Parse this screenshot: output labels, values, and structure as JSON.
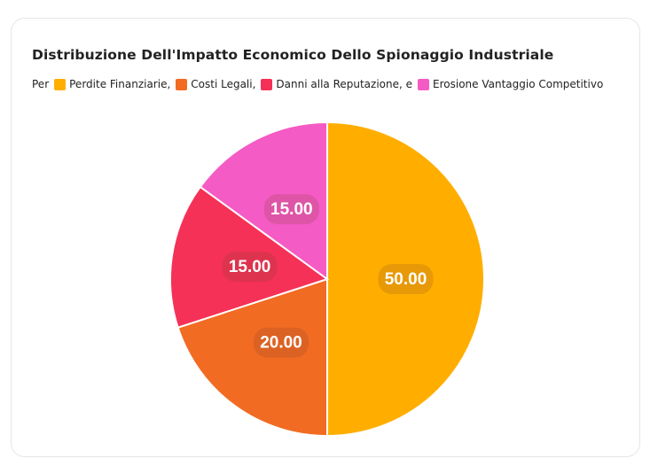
{
  "chart_data": {
    "type": "pie",
    "title": "Distribuzione Dell'Impatto Economico Dello Spionaggio Industriale",
    "legend_prefix": "Per",
    "legend_position": "top-left",
    "categories": [
      "Perdite Finanziarie,",
      "Costi Legali,",
      "Danni alla Reputazione, e",
      "Erosione Vantaggio Competitivo"
    ],
    "values": [
      50,
      20,
      15,
      15
    ],
    "labels": [
      "50.00",
      "20.00",
      "15.00",
      "15.00"
    ],
    "colors": [
      "#FFAE00",
      "#F26B23",
      "#F53157",
      "#F55BC4"
    ]
  }
}
